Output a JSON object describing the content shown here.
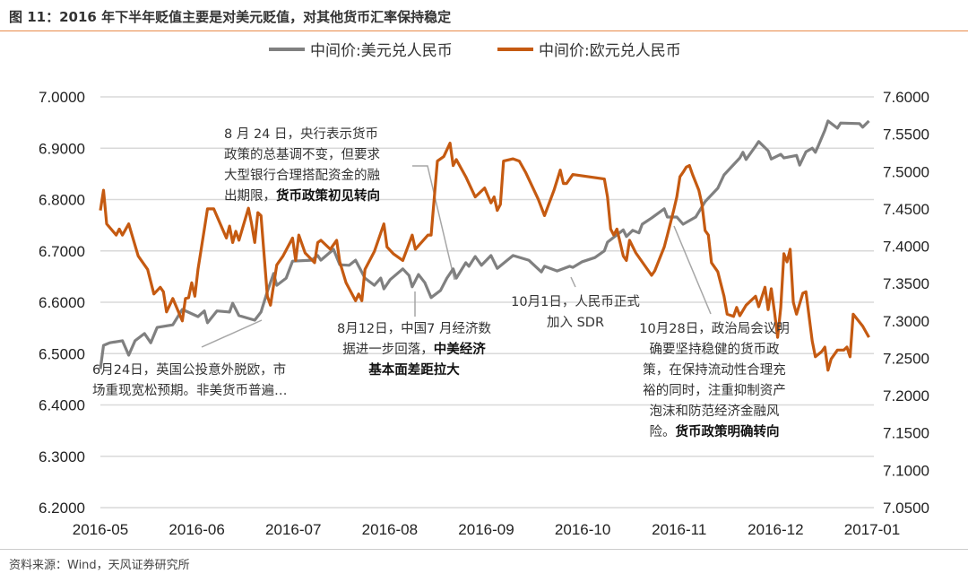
{
  "title": "图 11：2016 年下半年贬值主要是对美元贬值，对其他货币汇率保持稳定",
  "source": "资料来源：Wind，天风证券研究所",
  "chart_data": {
    "type": "line",
    "title": "",
    "x_tick_labels": [
      "2016-05",
      "2016-06",
      "2016-07",
      "2016-08",
      "2016-09",
      "2016-10",
      "2016-11",
      "2016-12",
      "2017-01"
    ],
    "xlim": [
      "2016-05-01",
      "2017-01-01"
    ],
    "y_left": {
      "ylim": [
        6.2,
        7.0
      ],
      "ticks": [
        "6.2000",
        "6.3000",
        "6.4000",
        "6.5000",
        "6.6000",
        "6.7000",
        "6.8000",
        "6.9000",
        "7.0000"
      ]
    },
    "y_right": {
      "ylim": [
        7.05,
        7.6
      ],
      "ticks": [
        "7.0500",
        "7.1000",
        "7.1500",
        "7.2000",
        "7.2500",
        "7.3000",
        "7.3500",
        "7.4000",
        "7.4500",
        "7.5000",
        "7.5500",
        "7.6000"
      ]
    },
    "grid": true,
    "legend_position": "top",
    "series": [
      {
        "name": "中间价:美元兑人民币",
        "axis": "left",
        "color": "#808080",
        "points": [
          [
            "2016-05-01",
            6.47
          ],
          [
            "2016-05-02",
            6.516
          ],
          [
            "2016-05-04",
            6.521
          ],
          [
            "2016-05-08",
            6.525
          ],
          [
            "2016-05-10",
            6.497
          ],
          [
            "2016-05-12",
            6.525
          ],
          [
            "2016-05-15",
            6.539
          ],
          [
            "2016-05-17",
            6.521
          ],
          [
            "2016-05-19",
            6.551
          ],
          [
            "2016-05-24",
            6.556
          ],
          [
            "2016-05-27",
            6.586
          ],
          [
            "2016-06-01",
            6.572
          ],
          [
            "2016-06-03",
            6.583
          ],
          [
            "2016-06-04",
            6.56
          ],
          [
            "2016-06-07",
            6.583
          ],
          [
            "2016-06-11",
            6.581
          ],
          [
            "2016-06-12",
            6.598
          ],
          [
            "2016-06-14",
            6.574
          ],
          [
            "2016-06-19",
            6.565
          ],
          [
            "2016-06-21",
            6.581
          ],
          [
            "2016-06-23",
            6.621
          ],
          [
            "2016-06-25",
            6.656
          ],
          [
            "2016-06-26",
            6.633
          ],
          [
            "2016-06-29",
            6.647
          ],
          [
            "2016-07-01",
            6.68
          ],
          [
            "2016-07-07",
            6.682
          ],
          [
            "2016-07-09",
            6.691
          ],
          [
            "2016-07-10",
            6.682
          ],
          [
            "2016-07-14",
            6.703
          ],
          [
            "2016-07-16",
            6.673
          ],
          [
            "2016-07-19",
            6.672
          ],
          [
            "2016-07-21",
            6.682
          ],
          [
            "2016-07-24",
            6.647
          ],
          [
            "2016-07-27",
            6.633
          ],
          [
            "2016-07-29",
            6.647
          ],
          [
            "2016-07-30",
            6.626
          ],
          [
            "2016-08-01",
            6.644
          ],
          [
            "2016-08-05",
            6.665
          ],
          [
            "2016-08-07",
            6.652
          ],
          [
            "2016-08-08",
            6.63
          ],
          [
            "2016-08-10",
            6.654
          ],
          [
            "2016-08-12",
            6.638
          ],
          [
            "2016-08-14",
            6.609
          ],
          [
            "2016-08-17",
            6.623
          ],
          [
            "2016-08-19",
            6.647
          ],
          [
            "2016-08-21",
            6.665
          ],
          [
            "2016-08-22",
            6.647
          ],
          [
            "2016-08-25",
            6.677
          ],
          [
            "2016-08-26",
            6.67
          ],
          [
            "2016-08-28",
            6.689
          ],
          [
            "2016-08-30",
            6.672
          ],
          [
            "2016-09-02",
            6.691
          ],
          [
            "2016-09-04",
            6.666
          ],
          [
            "2016-09-09",
            6.691
          ],
          [
            "2016-09-14",
            6.682
          ],
          [
            "2016-09-18",
            6.659
          ],
          [
            "2016-09-19",
            6.67
          ],
          [
            "2016-09-23",
            6.661
          ],
          [
            "2016-09-27",
            6.67
          ],
          [
            "2016-09-28",
            6.668
          ],
          [
            "2016-10-01",
            6.679
          ],
          [
            "2016-10-05",
            6.687
          ],
          [
            "2016-10-08",
            6.7
          ],
          [
            "2016-10-09",
            6.717
          ],
          [
            "2016-10-14",
            6.741
          ],
          [
            "2016-10-15",
            6.728
          ],
          [
            "2016-10-17",
            6.74
          ],
          [
            "2016-10-19",
            6.735
          ],
          [
            "2016-10-20",
            6.752
          ],
          [
            "2016-10-23",
            6.764
          ],
          [
            "2016-10-27",
            6.782
          ],
          [
            "2016-10-28",
            6.766
          ],
          [
            "2016-10-31",
            6.766
          ],
          [
            "2016-11-02",
            6.752
          ],
          [
            "2016-11-06",
            6.766
          ],
          [
            "2016-11-09",
            6.796
          ],
          [
            "2016-11-13",
            6.822
          ],
          [
            "2016-11-15",
            6.848
          ],
          [
            "2016-11-20",
            6.881
          ],
          [
            "2016-11-21",
            6.892
          ],
          [
            "2016-11-22",
            6.878
          ],
          [
            "2016-11-25",
            6.904
          ],
          [
            "2016-11-26",
            6.913
          ],
          [
            "2016-11-29",
            6.895
          ],
          [
            "2016-11-30",
            6.879
          ],
          [
            "2016-12-03",
            6.888
          ],
          [
            "2016-12-04",
            6.881
          ],
          [
            "2016-12-08",
            6.886
          ],
          [
            "2016-12-09",
            6.867
          ],
          [
            "2016-12-11",
            6.893
          ],
          [
            "2016-12-13",
            6.9
          ],
          [
            "2016-12-14",
            6.892
          ],
          [
            "2016-12-15",
            6.906
          ],
          [
            "2016-12-17",
            6.935
          ],
          [
            "2016-12-18",
            6.953
          ],
          [
            "2016-12-21",
            6.939
          ],
          [
            "2016-12-22",
            6.949
          ],
          [
            "2016-12-28",
            6.948
          ],
          [
            "2016-12-29",
            6.941
          ],
          [
            "2016-12-31",
            6.953
          ]
        ]
      },
      {
        "name": "中间价:欧元兑人民币",
        "axis": "right",
        "color": "#c55a11",
        "points": [
          [
            "2016-05-01",
            7.448
          ],
          [
            "2016-05-02",
            7.475
          ],
          [
            "2016-05-03",
            7.43
          ],
          [
            "2016-05-06",
            7.415
          ],
          [
            "2016-05-07",
            7.423
          ],
          [
            "2016-05-08",
            7.415
          ],
          [
            "2016-05-10",
            7.43
          ],
          [
            "2016-05-13",
            7.387
          ],
          [
            "2016-05-16",
            7.369
          ],
          [
            "2016-05-18",
            7.336
          ],
          [
            "2016-05-20",
            7.345
          ],
          [
            "2016-05-21",
            7.339
          ],
          [
            "2016-05-22",
            7.312
          ],
          [
            "2016-05-24",
            7.33
          ],
          [
            "2016-05-27",
            7.3
          ],
          [
            "2016-05-28",
            7.33
          ],
          [
            "2016-05-29",
            7.331
          ],
          [
            "2016-05-30",
            7.351
          ],
          [
            "2016-05-31",
            7.333
          ],
          [
            "2016-06-01",
            7.369
          ],
          [
            "2016-06-03",
            7.423
          ],
          [
            "2016-06-04",
            7.45
          ],
          [
            "2016-06-06",
            7.45
          ],
          [
            "2016-06-10",
            7.411
          ],
          [
            "2016-06-11",
            7.427
          ],
          [
            "2016-06-12",
            7.405
          ],
          [
            "2016-06-13",
            7.42
          ],
          [
            "2016-06-14",
            7.408
          ],
          [
            "2016-06-17",
            7.451
          ],
          [
            "2016-06-18",
            7.43
          ],
          [
            "2016-06-19",
            7.405
          ],
          [
            "2016-06-20",
            7.445
          ],
          [
            "2016-06-21",
            7.441
          ],
          [
            "2016-06-23",
            7.333
          ],
          [
            "2016-06-24",
            7.321
          ],
          [
            "2016-06-26",
            7.375
          ],
          [
            "2016-06-28",
            7.387
          ],
          [
            "2016-07-01",
            7.411
          ],
          [
            "2016-07-02",
            7.381
          ],
          [
            "2016-07-03",
            7.415
          ],
          [
            "2016-07-05",
            7.391
          ],
          [
            "2016-07-08",
            7.378
          ],
          [
            "2016-07-09",
            7.405
          ],
          [
            "2016-07-10",
            7.408
          ],
          [
            "2016-07-13",
            7.396
          ],
          [
            "2016-07-15",
            7.408
          ],
          [
            "2016-07-16",
            7.379
          ],
          [
            "2016-07-18",
            7.351
          ],
          [
            "2016-07-21",
            7.327
          ],
          [
            "2016-07-22",
            7.336
          ],
          [
            "2016-07-23",
            7.327
          ],
          [
            "2016-07-24",
            7.369
          ],
          [
            "2016-07-27",
            7.393
          ],
          [
            "2016-07-30",
            7.43
          ],
          [
            "2016-07-31",
            7.399
          ],
          [
            "2016-08-02",
            7.39
          ],
          [
            "2016-08-05",
            7.381
          ],
          [
            "2016-08-08",
            7.415
          ],
          [
            "2016-08-09",
            7.396
          ],
          [
            "2016-08-13",
            7.415
          ],
          [
            "2016-08-14",
            7.415
          ],
          [
            "2016-08-16",
            7.514
          ],
          [
            "2016-08-18",
            7.52
          ],
          [
            "2016-08-20",
            7.538
          ],
          [
            "2016-08-21",
            7.508
          ],
          [
            "2016-08-22",
            7.516
          ],
          [
            "2016-08-25",
            7.493
          ],
          [
            "2016-08-28",
            7.466
          ],
          [
            "2016-08-31",
            7.478
          ],
          [
            "2016-09-02",
            7.458
          ],
          [
            "2016-09-03",
            7.466
          ],
          [
            "2016-09-04",
            7.448
          ],
          [
            "2016-09-05",
            7.456
          ],
          [
            "2016-09-06",
            7.514
          ],
          [
            "2016-09-09",
            7.517
          ],
          [
            "2016-09-11",
            7.514
          ],
          [
            "2016-09-13",
            7.499
          ],
          [
            "2016-09-17",
            7.463
          ],
          [
            "2016-09-19",
            7.441
          ],
          [
            "2016-09-22",
            7.475
          ],
          [
            "2016-09-24",
            7.502
          ],
          [
            "2016-09-25",
            7.484
          ],
          [
            "2016-09-26",
            7.484
          ],
          [
            "2016-09-28",
            7.496
          ],
          [
            "2016-10-08",
            7.49
          ],
          [
            "2016-10-09",
            7.466
          ],
          [
            "2016-10-10",
            7.423
          ],
          [
            "2016-10-11",
            7.415
          ],
          [
            "2016-10-12",
            7.423
          ],
          [
            "2016-10-14",
            7.387
          ],
          [
            "2016-10-15",
            7.381
          ],
          [
            "2016-10-16",
            7.408
          ],
          [
            "2016-10-18",
            7.391
          ],
          [
            "2016-10-22",
            7.367
          ],
          [
            "2016-10-23",
            7.361
          ],
          [
            "2016-10-24",
            7.367
          ],
          [
            "2016-10-27",
            7.399
          ],
          [
            "2016-10-28",
            7.415
          ],
          [
            "2016-10-30",
            7.448
          ],
          [
            "2016-10-31",
            7.466
          ],
          [
            "2016-11-01",
            7.493
          ],
          [
            "2016-11-02",
            7.499
          ],
          [
            "2016-11-03",
            7.506
          ],
          [
            "2016-11-04",
            7.508
          ],
          [
            "2016-11-05",
            7.496
          ],
          [
            "2016-11-07",
            7.475
          ],
          [
            "2016-11-08",
            7.456
          ],
          [
            "2016-11-09",
            7.421
          ],
          [
            "2016-11-10",
            7.415
          ],
          [
            "2016-11-11",
            7.378
          ],
          [
            "2016-11-13",
            7.366
          ],
          [
            "2016-11-15",
            7.333
          ],
          [
            "2016-11-16",
            7.309
          ],
          [
            "2016-11-18",
            7.306
          ],
          [
            "2016-11-19",
            7.318
          ],
          [
            "2016-11-20",
            7.307
          ],
          [
            "2016-11-22",
            7.321
          ],
          [
            "2016-11-25",
            7.333
          ],
          [
            "2016-11-26",
            7.319
          ],
          [
            "2016-11-28",
            7.345
          ],
          [
            "2016-11-29",
            7.315
          ],
          [
            "2016-11-30",
            7.343
          ],
          [
            "2016-12-01",
            7.312
          ],
          [
            "2016-12-02",
            7.278
          ],
          [
            "2016-12-03",
            7.318
          ],
          [
            "2016-12-04",
            7.39
          ],
          [
            "2016-12-05",
            7.379
          ],
          [
            "2016-12-06",
            7.396
          ],
          [
            "2016-12-07",
            7.325
          ],
          [
            "2016-12-08",
            7.309
          ],
          [
            "2016-12-10",
            7.337
          ],
          [
            "2016-12-11",
            7.339
          ],
          [
            "2016-12-13",
            7.273
          ],
          [
            "2016-12-14",
            7.252
          ],
          [
            "2016-12-16",
            7.259
          ],
          [
            "2016-12-17",
            7.265
          ],
          [
            "2016-12-18",
            7.234
          ],
          [
            "2016-12-19",
            7.249
          ],
          [
            "2016-12-20",
            7.255
          ],
          [
            "2016-12-21",
            7.261
          ],
          [
            "2016-12-23",
            7.261
          ],
          [
            "2016-12-24",
            7.265
          ],
          [
            "2016-12-25",
            7.252
          ],
          [
            "2016-12-26",
            7.309
          ],
          [
            "2016-12-29",
            7.293
          ],
          [
            "2016-12-31",
            7.278
          ]
        ]
      }
    ],
    "annotations": [
      {
        "lines": [
          "8 月 24 日，央行表示货币",
          "政策的总基调不变，但要求",
          "大型银行合理搭配资金的融"
        ],
        "last_plain": "出期限，",
        "last_bold": "货币政策初见转向"
      },
      {
        "lines": [
          "6月24日，英国公投意外脱欧，市",
          "场重现宽松预期。非美货币普遍…"
        ]
      },
      {
        "lines": [
          "8月12日，中国7 月经济数"
        ],
        "line2_plain": "据进一步回落，",
        "line2_bold": "中美经济",
        "line3_bold": "基本面差距拉大"
      },
      {
        "lines": [
          "10月1日，人民币正式",
          "加入 SDR"
        ]
      },
      {
        "lines": [
          "10月28日，政治局会议明",
          "确要坚持稳健的货币政",
          "策，在保持流动性合理充",
          "裕的同时，注重抑制资产",
          "泡沫和防范经济金融风"
        ],
        "last_plain": "险。",
        "last_bold": "货币政策明确转向"
      }
    ]
  }
}
